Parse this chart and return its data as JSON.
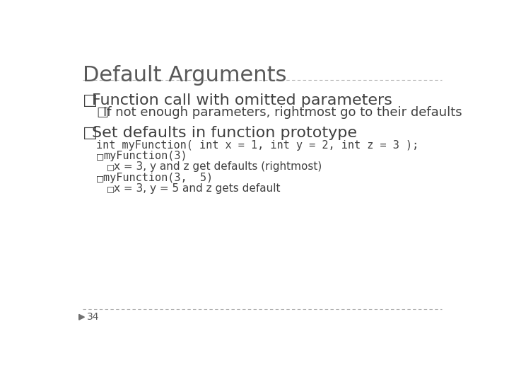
{
  "title": "Default Arguments",
  "bg_color": "#ffffff",
  "title_color": "#595959",
  "title_fontsize": 22,
  "line_color": "#b0b0b0",
  "bullet1_text": "Function call with omitted parameters",
  "bullet1_color": "#404040",
  "bullet1_fontsize": 16,
  "sub1_text": "If not enough parameters, rightmost go to their defaults",
  "sub1_color": "#404040",
  "sub1_fontsize": 13,
  "bullet2_text": "Set defaults in function prototype",
  "bullet2_color": "#404040",
  "bullet2_fontsize": 16,
  "code1": "int myFunction( int x = 1, int y = 2, int z = 3 );",
  "code1_color": "#404040",
  "code1_fontsize": 11,
  "code2a_text": "myFunction(3)",
  "code2a_color": "#404040",
  "code2a_fontsize": 11,
  "sub2a_text": "x = 3, y and z get defaults (rightmost)",
  "sub2a_color": "#404040",
  "sub2a_fontsize": 11,
  "code2b_text": "myFunction(3,  5)",
  "code2b_color": "#404040",
  "code2b_fontsize": 11,
  "sub2b_text": "x = 3, y = 5 and z gets default",
  "sub2b_color": "#404040",
  "sub2b_fontsize": 11,
  "page_number": "34",
  "page_color": "#595959",
  "page_fontsize": 10,
  "arrow_color": "#707070",
  "bullet_char": "□"
}
